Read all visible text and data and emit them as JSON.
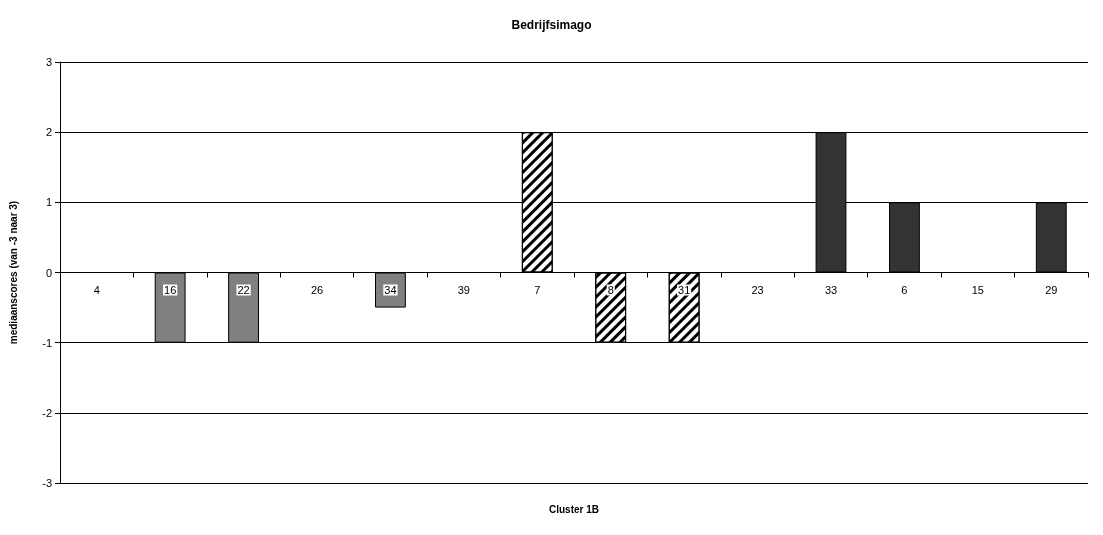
{
  "chart_data": {
    "type": "bar",
    "title": "Bedrijfsimago",
    "xlabel": "Cluster 1B",
    "ylabel": "mediaanscores (van -3 naar 3)",
    "categories": [
      "4",
      "16",
      "22",
      "26",
      "34",
      "39",
      "7",
      "8",
      "31",
      "23",
      "33",
      "6",
      "15",
      "29"
    ],
    "stacked": true,
    "series": [
      {
        "color": "#808080",
        "values": [
          0,
          -1,
          -1,
          0,
          -0.5,
          0,
          null,
          null,
          null,
          null,
          null,
          null,
          null,
          null
        ]
      },
      {
        "color": "#ffffff",
        "values": [
          null,
          null,
          null,
          null,
          null,
          null,
          2,
          -1,
          -1,
          0,
          null,
          null,
          null,
          null
        ]
      },
      {
        "color": "#333333",
        "values": [
          null,
          null,
          null,
          null,
          null,
          null,
          null,
          null,
          null,
          null,
          2,
          1,
          0,
          1
        ]
      }
    ],
    "ylim": [
      -3,
      3
    ],
    "yticks": [
      -3,
      -2,
      -1,
      0,
      1,
      2,
      3
    ],
    "grid": "y"
  }
}
